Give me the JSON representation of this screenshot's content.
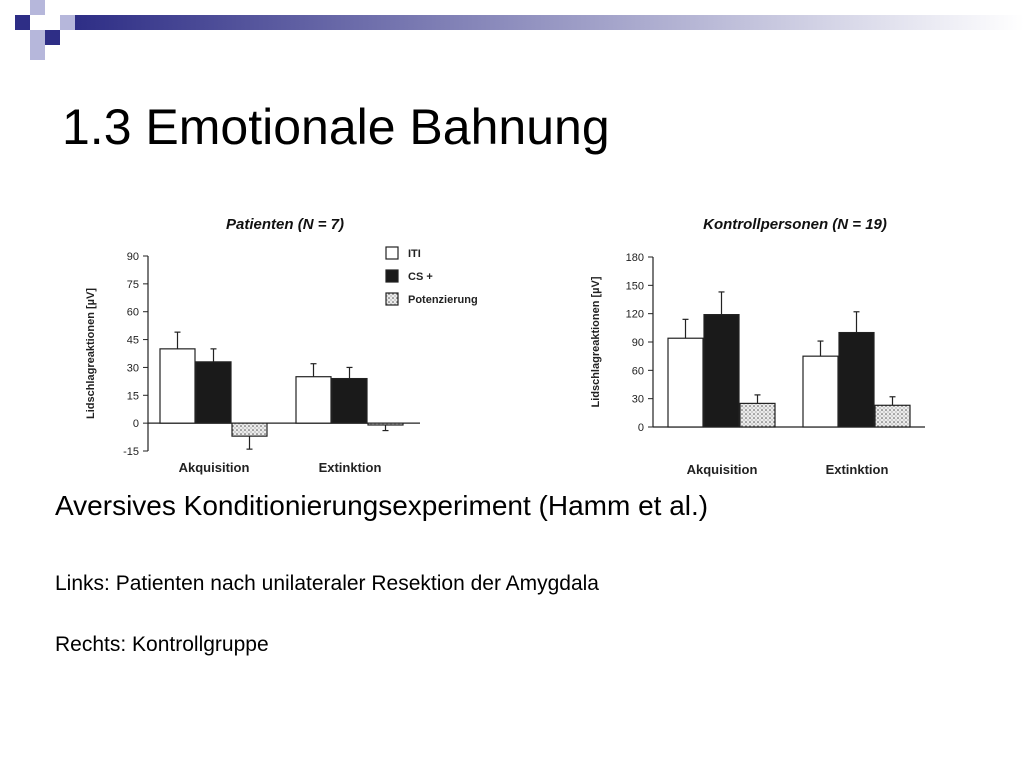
{
  "slide": {
    "title": "1.3 Emotionale Bahnung",
    "subtitle": "Aversives Konditionierungsexperiment (Hamm et al.)",
    "line1": "Links: Patienten nach unilateraler Resektion der Amygdala",
    "line2": "Rechts: Kontrollgruppe"
  },
  "colors": {
    "accent": "#3b3b8f",
    "accent_light": "#aeb0d8"
  },
  "chart_data": [
    {
      "type": "bar",
      "title": "Patienten (N = 7)",
      "ylabel": "Lidschlagreaktionen [µV]",
      "categories": [
        "Akquisition",
        "Extinktion"
      ],
      "yticks": [
        -15,
        0,
        15,
        30,
        45,
        60,
        75,
        90
      ],
      "ylim": [
        -15,
        90
      ],
      "legend": [
        "ITI",
        "CS +",
        "Potenzierung"
      ],
      "series": [
        {
          "name": "ITI",
          "values": [
            40,
            25
          ],
          "errors": [
            9,
            7
          ],
          "color": "#ffffff"
        },
        {
          "name": "CS +",
          "values": [
            33,
            24
          ],
          "errors": [
            7,
            6
          ],
          "color": "#1a1a1a"
        },
        {
          "name": "Potenzierung",
          "values": [
            -7,
            -1
          ],
          "errors": [
            7,
            3
          ],
          "color": "#d9d9d9"
        }
      ]
    },
    {
      "type": "bar",
      "title": "Kontrollpersonen (N = 19)",
      "ylabel": "Lidschlagreaktionen [µV]",
      "categories": [
        "Akquisition",
        "Extinktion"
      ],
      "yticks": [
        0,
        30,
        60,
        90,
        120,
        150,
        180
      ],
      "ylim": [
        0,
        180
      ],
      "series": [
        {
          "name": "ITI",
          "values": [
            94,
            75
          ],
          "errors": [
            20,
            16
          ],
          "color": "#ffffff"
        },
        {
          "name": "CS +",
          "values": [
            119,
            100
          ],
          "errors": [
            24,
            22
          ],
          "color": "#1a1a1a"
        },
        {
          "name": "Potenzierung",
          "values": [
            25,
            23
          ],
          "errors": [
            9,
            9
          ],
          "color": "#d9d9d9"
        }
      ]
    }
  ]
}
